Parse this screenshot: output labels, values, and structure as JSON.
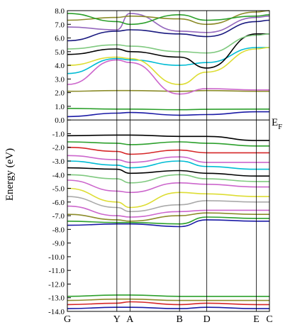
{
  "chart_data": {
    "type": "line",
    "ylabel": "Energy (eV)",
    "ylim": [
      -14.0,
      8.0
    ],
    "yticks": [
      8.0,
      7.0,
      6.0,
      5.0,
      4.0,
      3.0,
      2.0,
      1.0,
      0.0,
      -1.0,
      -2.0,
      -3.0,
      -4.0,
      -5.0,
      -6.0,
      -7.0,
      -8.0,
      -9.0,
      -10.0,
      -11.0,
      -12.0,
      -13.0,
      -14.0
    ],
    "ytick_labels": [
      "8.0",
      "7.0",
      "6.0",
      "5.0",
      "4.0",
      "3.0",
      "2.0",
      "1.0",
      "0.0",
      "-1.0",
      "-2.0",
      "-3.0",
      "-4.0",
      "-5.0",
      "-6.0",
      "-7.0",
      "-8.0",
      "-9.0",
      "-10.0",
      "-11.0",
      "-12.0",
      "-13.0",
      "-14.0"
    ],
    "kpoints": [
      {
        "label": "G",
        "x": 0.0
      },
      {
        "label": "Y",
        "x": 0.245
      },
      {
        "label": "A",
        "x": 0.31
      },
      {
        "label": "B",
        "x": 0.555
      },
      {
        "label": "D",
        "x": 0.69
      },
      {
        "label": "E",
        "x": 0.935
      },
      {
        "label": "C",
        "x": 1.0
      }
    ],
    "fermi_level": {
      "value": 0.0,
      "label": "E",
      "subscript": "F"
    },
    "grid": false,
    "series": [
      {
        "color": "#1a1aa6",
        "x": [
          0,
          0.245,
          0.31,
          0.555,
          0.69,
          0.935,
          1
        ],
        "y": [
          0.25,
          0.5,
          0.55,
          0.35,
          0.4,
          0.6,
          0.6
        ]
      },
      {
        "color": "#2ca02c",
        "x": [
          0,
          0.245,
          0.31,
          0.555,
          0.69,
          0.935,
          1
        ],
        "y": [
          0.85,
          0.8,
          0.8,
          0.75,
          0.78,
          0.8,
          0.8
        ]
      },
      {
        "color": "#8c8c2a",
        "x": [
          0,
          0.245,
          0.31,
          0.555,
          0.69,
          0.935,
          1
        ],
        "y": [
          2.1,
          2.15,
          2.15,
          2.1,
          2.15,
          2.1,
          2.1
        ]
      },
      {
        "color": "#cc66cc",
        "x": [
          0,
          0.245,
          0.31,
          0.555,
          0.69,
          0.935,
          1
        ],
        "y": [
          2.6,
          4.4,
          4.2,
          1.9,
          2.3,
          2.2,
          2.2
        ]
      },
      {
        "color": "#00bcd4",
        "x": [
          0,
          0.245,
          0.31,
          0.555,
          0.69,
          0.935,
          1
        ],
        "y": [
          3.4,
          4.5,
          4.4,
          4.0,
          4.2,
          5.3,
          5.3
        ]
      },
      {
        "color": "#dddd33",
        "x": [
          0,
          0.245,
          0.31,
          0.555,
          0.69,
          0.935,
          1
        ],
        "y": [
          4.0,
          4.6,
          4.5,
          2.6,
          3.5,
          5.2,
          5.3
        ]
      },
      {
        "color": "#000000",
        "x": [
          0,
          0.245,
          0.31,
          0.555,
          0.69,
          0.935,
          1
        ],
        "y": [
          4.8,
          5.2,
          5.0,
          4.6,
          3.8,
          6.3,
          6.3
        ]
      },
      {
        "color": "#7fc97f",
        "x": [
          0,
          0.245,
          0.31,
          0.555,
          0.69,
          0.935,
          1
        ],
        "y": [
          5.2,
          5.5,
          5.4,
          5.0,
          4.9,
          6.2,
          6.3
        ]
      },
      {
        "color": "#1a1a80",
        "x": [
          0,
          0.245,
          0.31,
          0.555,
          0.69,
          0.935,
          1
        ],
        "y": [
          5.8,
          6.5,
          6.6,
          6.3,
          6.1,
          7.2,
          7.3
        ]
      },
      {
        "color": "#9467bd",
        "x": [
          0,
          0.245,
          0.31,
          0.555,
          0.69,
          0.935,
          1
        ],
        "y": [
          6.8,
          6.6,
          7.8,
          6.5,
          6.4,
          7.5,
          7.6
        ]
      },
      {
        "color": "#8c8c2a",
        "x": [
          0,
          0.245,
          0.31,
          0.555,
          0.69,
          0.935,
          1
        ],
        "y": [
          7.3,
          7.5,
          7.6,
          7.4,
          7.0,
          7.9,
          8.0
        ]
      },
      {
        "color": "#2ca02c",
        "x": [
          0,
          0.245,
          0.31,
          0.555,
          0.69,
          0.935,
          1
        ],
        "y": [
          7.8,
          7.2,
          7.0,
          7.7,
          7.3,
          7.6,
          7.7
        ]
      },
      {
        "color": "#000000",
        "x": [
          0,
          0.245,
          0.31,
          0.555,
          0.69,
          0.935,
          1
        ],
        "y": [
          -1.15,
          -1.1,
          -1.1,
          -1.2,
          -1.2,
          -1.5,
          -1.5
        ]
      },
      {
        "color": "#2ca02c",
        "x": [
          0,
          0.245,
          0.31,
          0.555,
          0.69,
          0.935,
          1
        ],
        "y": [
          -1.6,
          -1.7,
          -1.8,
          -1.6,
          -1.7,
          -1.9,
          -1.9
        ]
      },
      {
        "color": "#d62728",
        "x": [
          0,
          0.245,
          0.31,
          0.555,
          0.69,
          0.935,
          1
        ],
        "y": [
          -2.0,
          -2.3,
          -2.5,
          -2.2,
          -2.4,
          -2.4,
          -2.4
        ]
      },
      {
        "color": "#cc66cc",
        "x": [
          0,
          0.245,
          0.31,
          0.555,
          0.69,
          0.935,
          1
        ],
        "y": [
          -2.6,
          -2.9,
          -3.1,
          -2.7,
          -3.1,
          -3.1,
          -3.1
        ]
      },
      {
        "color": "#00bcd4",
        "x": [
          0,
          0.245,
          0.31,
          0.555,
          0.69,
          0.935,
          1
        ],
        "y": [
          -3.0,
          -3.3,
          -3.5,
          -3.0,
          -3.4,
          -3.6,
          -3.6
        ]
      },
      {
        "color": "#000000",
        "x": [
          0,
          0.245,
          0.31,
          0.555,
          0.69,
          0.935,
          1
        ],
        "y": [
          -3.5,
          -3.6,
          -3.9,
          -3.7,
          -3.9,
          -4.1,
          -4.1
        ]
      },
      {
        "color": "#7fc97f",
        "x": [
          0,
          0.245,
          0.31,
          0.555,
          0.69,
          0.935,
          1
        ],
        "y": [
          -4.0,
          -4.3,
          -4.6,
          -4.0,
          -4.3,
          -4.5,
          -4.5
        ]
      },
      {
        "color": "#cc66cc",
        "x": [
          0,
          0.245,
          0.31,
          0.555,
          0.69,
          0.935,
          1
        ],
        "y": [
          -4.4,
          -5.2,
          -5.3,
          -4.6,
          -4.7,
          -4.9,
          -4.9
        ]
      },
      {
        "color": "#dddd33",
        "x": [
          0,
          0.245,
          0.31,
          0.555,
          0.69,
          0.935,
          1
        ],
        "y": [
          -5.0,
          -6.0,
          -6.4,
          -5.3,
          -5.4,
          -5.6,
          -5.6
        ]
      },
      {
        "color": "#aaaaaa",
        "x": [
          0,
          0.245,
          0.31,
          0.555,
          0.69,
          0.935,
          1
        ],
        "y": [
          -5.6,
          -6.4,
          -6.7,
          -6.2,
          -5.9,
          -6.0,
          -6.0
        ]
      },
      {
        "color": "#cc66cc",
        "x": [
          0,
          0.245,
          0.31,
          0.555,
          0.69,
          0.935,
          1
        ],
        "y": [
          -6.3,
          -7.0,
          -7.1,
          -6.7,
          -6.6,
          -6.6,
          -6.6
        ]
      },
      {
        "color": "#8c8c2a",
        "x": [
          0,
          0.245,
          0.31,
          0.555,
          0.69,
          0.935,
          1
        ],
        "y": [
          -6.9,
          -7.3,
          -7.4,
          -7.0,
          -6.8,
          -6.9,
          -6.9
        ]
      },
      {
        "color": "#2ca02c",
        "x": [
          0,
          0.245,
          0.31,
          0.555,
          0.69,
          0.935,
          1
        ],
        "y": [
          -7.4,
          -7.5,
          -7.5,
          -7.6,
          -7.1,
          -7.2,
          -7.2
        ]
      },
      {
        "color": "#1a1aa6",
        "x": [
          0,
          0.245,
          0.31,
          0.555,
          0.69,
          0.935,
          1
        ],
        "y": [
          -7.7,
          -7.6,
          -7.6,
          -7.8,
          -7.3,
          -7.4,
          -7.4
        ]
      },
      {
        "color": "#2ca02c",
        "x": [
          0,
          0.245,
          0.31,
          0.555,
          0.69,
          0.935,
          1
        ],
        "y": [
          -12.9,
          -12.8,
          -12.8,
          -12.9,
          -12.9,
          -12.9,
          -12.9
        ]
      },
      {
        "color": "#8c8c2a",
        "x": [
          0,
          0.245,
          0.31,
          0.555,
          0.69,
          0.935,
          1
        ],
        "y": [
          -13.2,
          -13.1,
          -13.1,
          -13.2,
          -13.2,
          -13.2,
          -13.2
        ]
      },
      {
        "color": "#d62728",
        "x": [
          0,
          0.245,
          0.31,
          0.555,
          0.69,
          0.935,
          1
        ],
        "y": [
          -13.5,
          -13.4,
          -13.3,
          -13.5,
          -13.4,
          -13.5,
          -13.5
        ]
      },
      {
        "color": "#1a1aa6",
        "x": [
          0,
          0.245,
          0.31,
          0.555,
          0.69,
          0.935,
          1
        ],
        "y": [
          -13.8,
          -13.7,
          -13.7,
          -13.8,
          -13.7,
          -13.8,
          -13.8
        ]
      }
    ]
  }
}
